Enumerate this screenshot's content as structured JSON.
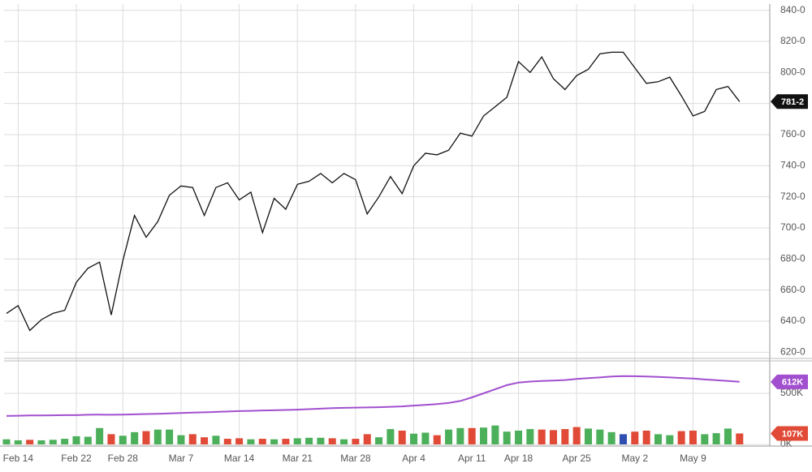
{
  "chart_data": [
    {
      "type": "line",
      "categories": [
        null,
        "Feb 14",
        null,
        null,
        null,
        null,
        "Feb 22",
        null,
        null,
        null,
        "Feb 28",
        null,
        null,
        null,
        null,
        "Mar 7",
        null,
        null,
        null,
        null,
        "Mar 14",
        null,
        null,
        null,
        null,
        "Mar 21",
        null,
        null,
        null,
        null,
        "Mar 28",
        null,
        null,
        null,
        null,
        "Apr 4",
        null,
        null,
        null,
        null,
        "Apr 11",
        null,
        null,
        null,
        "Apr 18",
        null,
        null,
        null,
        null,
        "Apr 25",
        null,
        null,
        null,
        null,
        "May 2",
        null,
        null,
        null,
        null,
        "May 9",
        null,
        null,
        null,
        null
      ],
      "values": [
        645,
        650,
        634,
        641,
        645,
        647,
        665,
        674,
        678,
        644,
        679,
        708,
        694,
        704,
        721,
        727,
        726,
        708,
        726,
        729,
        718,
        723,
        697,
        719,
        712,
        728,
        730,
        735,
        729,
        735,
        731,
        709,
        720,
        733,
        722,
        740,
        748,
        747,
        750,
        761,
        759,
        772,
        778,
        784,
        807,
        800,
        810,
        796,
        789,
        798,
        802,
        812,
        813,
        813,
        803,
        793,
        794,
        797,
        785,
        772,
        775,
        789,
        791,
        781.25
      ],
      "color": "#111111",
      "ylim": [
        616,
        844
      ],
      "yticks": [
        {
          "value": 620,
          "label": "620-0"
        },
        {
          "value": 640,
          "label": "640-0"
        },
        {
          "value": 660,
          "label": "660-0"
        },
        {
          "value": 680,
          "label": "680-0"
        },
        {
          "value": 700,
          "label": "700-0"
        },
        {
          "value": 720,
          "label": "720-0"
        },
        {
          "value": 740,
          "label": "740-0"
        },
        {
          "value": 760,
          "label": "760-0"
        },
        {
          "value": 780,
          "label": "780-0"
        },
        {
          "value": 800,
          "label": "800-0"
        },
        {
          "value": 820,
          "label": "820-0"
        },
        {
          "value": 840,
          "label": "840-0"
        }
      ],
      "markers": [
        {
          "value": 781.25,
          "label": "781-2",
          "color": "#111111"
        }
      ]
    },
    {
      "type": "bar",
      "values": [
        50,
        40,
        45,
        40,
        45,
        55,
        80,
        75,
        160,
        100,
        85,
        120,
        130,
        145,
        145,
        90,
        100,
        70,
        85,
        55,
        60,
        50,
        55,
        50,
        55,
        60,
        65,
        65,
        60,
        50,
        55,
        100,
        70,
        150,
        135,
        105,
        115,
        90,
        145,
        160,
        160,
        165,
        185,
        125,
        135,
        150,
        145,
        140,
        150,
        170,
        155,
        145,
        120,
        100,
        125,
        135,
        100,
        90,
        130,
        135,
        100,
        110,
        155,
        107
      ],
      "colors": [
        "#4caf5a",
        "#4caf5a",
        "#e04a36",
        "#4caf5a",
        "#4caf5a",
        "#4caf5a",
        "#4caf5a",
        "#4caf5a",
        "#4caf5a",
        "#e04a36",
        "#4caf5a",
        "#4caf5a",
        "#e04a36",
        "#4caf5a",
        "#4caf5a",
        "#4caf5a",
        "#e04a36",
        "#e04a36",
        "#4caf5a",
        "#e04a36",
        "#e04a36",
        "#4caf5a",
        "#e04a36",
        "#4caf5a",
        "#e04a36",
        "#4caf5a",
        "#4caf5a",
        "#4caf5a",
        "#e04a36",
        "#4caf5a",
        "#e04a36",
        "#e04a36",
        "#4caf5a",
        "#4caf5a",
        "#e04a36",
        "#4caf5a",
        "#4caf5a",
        "#e04a36",
        "#4caf5a",
        "#4caf5a",
        "#e04a36",
        "#4caf5a",
        "#4caf5a",
        "#4caf5a",
        "#4caf5a",
        "#4caf5a",
        "#e04a36",
        "#e04a36",
        "#e04a36",
        "#e04a36",
        "#4caf5a",
        "#4caf5a",
        "#4caf5a",
        "#2f4fb0",
        "#e04a36",
        "#e04a36",
        "#4caf5a",
        "#4caf5a",
        "#e04a36",
        "#e04a36",
        "#4caf5a",
        "#4caf5a",
        "#4caf5a",
        "#e04a36"
      ],
      "average": {
        "values": [
          278,
          281,
          283,
          284,
          285,
          286,
          286,
          290,
          291,
          290,
          291,
          294,
          297,
          300,
          304,
          308,
          312,
          314,
          318,
          322,
          326,
          328,
          332,
          334,
          337,
          340,
          345,
          350,
          355,
          358,
          360,
          362,
          364,
          368,
          372,
          380,
          386,
          395,
          405,
          425,
          460,
          500,
          540,
          580,
          605,
          615,
          620,
          625,
          630,
          640,
          648,
          655,
          665,
          668,
          667,
          665,
          660,
          655,
          650,
          645,
          635,
          628,
          620,
          612
        ],
        "color": "#a24fcf"
      },
      "ylim": [
        -16,
        817
      ],
      "yticks": [
        {
          "value": 0,
          "label": "0K"
        },
        {
          "value": 500,
          "label": "500K"
        }
      ],
      "markers": [
        {
          "value": 107,
          "label": "107K",
          "color": "#e04a36"
        },
        {
          "value": 612,
          "label": "612K",
          "color": "#a24fcf"
        }
      ]
    }
  ]
}
